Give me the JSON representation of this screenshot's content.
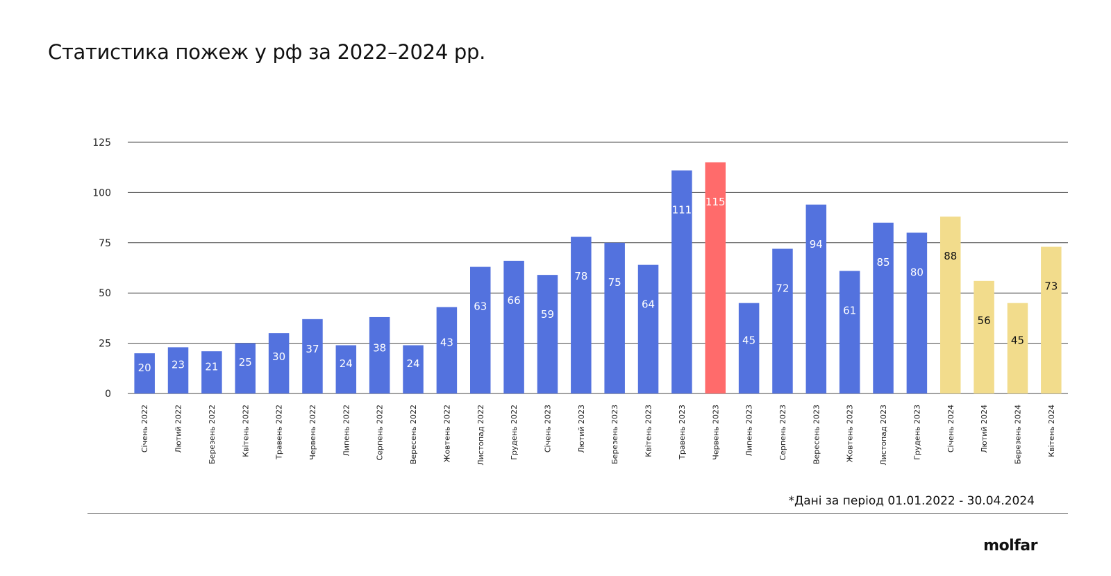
{
  "title": "Статистика пожеж у рф за 2022–2024 рр.",
  "footnote": "*Дані за період 01.01.2022 - 30.04.2024",
  "logo_text": "molfar",
  "colors": {
    "blue": "#5372DE",
    "red": "#FF6B6B",
    "yellow": "#F2DC8C",
    "grid": "#444444",
    "label_light": "#ffffff",
    "label_dark": "#111111"
  },
  "chart_data": {
    "type": "bar",
    "title": "Статистика пожеж у рф за 2022–2024 рр.",
    "xlabel": "",
    "ylabel": "",
    "ylim": [
      0,
      125
    ],
    "yticks": [
      0,
      25,
      50,
      75,
      100,
      125
    ],
    "grid": true,
    "categories": [
      "Січень 2022",
      "Лютий 2022",
      "Березень 2022",
      "Квітень 2022",
      "Травень 2022",
      "Червень 2022",
      "Липень 2022",
      "Серпень 2022",
      "Вересень 2022",
      "Жовтень 2022",
      "Листопад 2022",
      "Грудень 2022",
      "Січень 2023",
      "Лютий 2023",
      "Березень 2023",
      "Квітень 2023",
      "Травень 2023",
      "Червень 2023",
      "Липень 2023",
      "Серпень 2023",
      "Вересень 2023",
      "Жовтень 2023",
      "Листопад 2023",
      "Грудень 2023",
      "Січень 2024",
      "Лютий 2024",
      "Березень 2024",
      "Квітень 2024"
    ],
    "values": [
      20,
      23,
      21,
      25,
      30,
      37,
      24,
      38,
      24,
      43,
      63,
      66,
      59,
      78,
      75,
      64,
      111,
      115,
      45,
      72,
      94,
      61,
      85,
      80,
      88,
      56,
      45,
      73
    ],
    "bar_colors": [
      "blue",
      "blue",
      "blue",
      "blue",
      "blue",
      "blue",
      "blue",
      "blue",
      "blue",
      "blue",
      "blue",
      "blue",
      "blue",
      "blue",
      "blue",
      "blue",
      "blue",
      "red",
      "blue",
      "blue",
      "blue",
      "blue",
      "blue",
      "blue",
      "yellow",
      "yellow",
      "yellow",
      "yellow"
    ]
  }
}
